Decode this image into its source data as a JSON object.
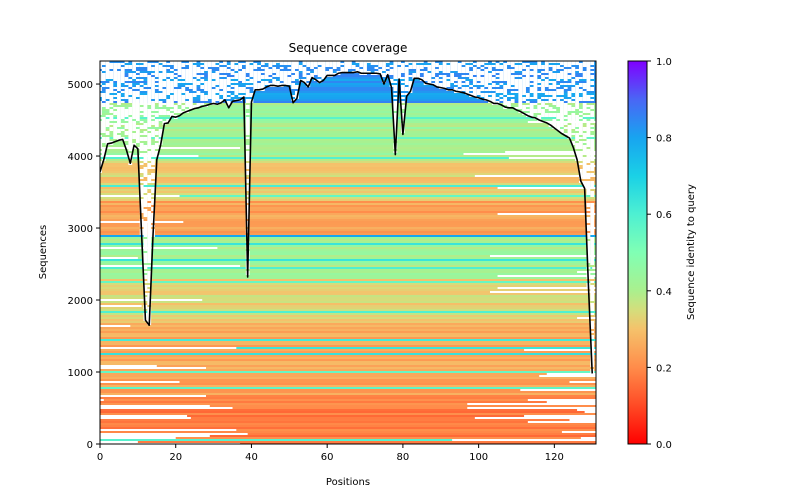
{
  "chart_data": {
    "type": "heatmap",
    "title": "Sequence coverage",
    "xlabel": "Positions",
    "ylabel": "Sequences",
    "xlim": [
      0,
      131
    ],
    "ylim": [
      0,
      5320
    ],
    "x_ticks": [
      0,
      20,
      40,
      60,
      80,
      100,
      120
    ],
    "y_ticks": [
      0,
      1000,
      2000,
      3000,
      4000,
      5000
    ],
    "grid": false,
    "colormap": "rainbow_r",
    "colorbar": {
      "label": "Sequence identity to query",
      "range": [
        0.0,
        1.0
      ],
      "ticks": [
        "0.0",
        "0.2",
        "0.4",
        "0.6",
        "0.8",
        "1.0"
      ],
      "placement": "right"
    },
    "identity_bands": [
      {
        "from_seq": 0,
        "to_seq": 700,
        "identity": 0.18
      },
      {
        "from_seq": 700,
        "to_seq": 1700,
        "identity": 0.25
      },
      {
        "from_seq": 1700,
        "to_seq": 2300,
        "identity": 0.33
      },
      {
        "from_seq": 2300,
        "to_seq": 2880,
        "identity": 0.42
      },
      {
        "from_seq": 2880,
        "to_seq": 2920,
        "identity": 0.78
      },
      {
        "from_seq": 2920,
        "to_seq": 3400,
        "identity": 0.24
      },
      {
        "from_seq": 3400,
        "to_seq": 3950,
        "identity": 0.32
      },
      {
        "from_seq": 3950,
        "to_seq": 4740,
        "identity": 0.42
      },
      {
        "from_seq": 4740,
        "to_seq": 5320,
        "identity": 0.82
      }
    ],
    "coverage_line": {
      "name": "coverage",
      "color": "#000000",
      "x": [
        0,
        1,
        2,
        3,
        4,
        5,
        6,
        7,
        8,
        9,
        10,
        11,
        12,
        13,
        14,
        15,
        16,
        17,
        18,
        19,
        20,
        21,
        22,
        23,
        24,
        25,
        26,
        27,
        28,
        29,
        30,
        31,
        32,
        33,
        34,
        35,
        36,
        37,
        38,
        39,
        40,
        41,
        42,
        43,
        44,
        45,
        46,
        47,
        48,
        49,
        50,
        51,
        52,
        53,
        54,
        55,
        56,
        57,
        58,
        59,
        60,
        61,
        62,
        63,
        64,
        65,
        66,
        67,
        68,
        69,
        70,
        71,
        72,
        73,
        74,
        75,
        76,
        77,
        78,
        79,
        80,
        81,
        82,
        83,
        84,
        85,
        86,
        87,
        88,
        89,
        90,
        91,
        92,
        93,
        94,
        95,
        96,
        97,
        98,
        99,
        100,
        101,
        102,
        103,
        104,
        105,
        106,
        107,
        108,
        109,
        110,
        111,
        112,
        113,
        114,
        115,
        116,
        117,
        118,
        119,
        120,
        121,
        122,
        123,
        124,
        125,
        126,
        127,
        128,
        129,
        130
      ],
      "y": [
        3780,
        3950,
        4170,
        4180,
        4200,
        4220,
        4230,
        4080,
        3900,
        4150,
        4100,
        2900,
        1720,
        1650,
        2900,
        3950,
        4150,
        4450,
        4460,
        4550,
        4540,
        4560,
        4600,
        4620,
        4640,
        4660,
        4670,
        4690,
        4700,
        4720,
        4730,
        4720,
        4740,
        4780,
        4670,
        4760,
        4770,
        4780,
        4820,
        2320,
        4750,
        4920,
        4920,
        4930,
        4960,
        4980,
        4980,
        4970,
        4980,
        4980,
        4970,
        4740,
        4800,
        5050,
        5020,
        4960,
        5090,
        5060,
        5020,
        5050,
        5120,
        5120,
        5120,
        5150,
        5160,
        5160,
        5160,
        5160,
        5170,
        5150,
        5150,
        5150,
        5150,
        5150,
        5140,
        5000,
        5130,
        4950,
        4020,
        5070,
        4300,
        4830,
        4900,
        5080,
        5080,
        5060,
        5010,
        5000,
        4990,
        4960,
        4950,
        4940,
        4920,
        4920,
        4900,
        4890,
        4880,
        4860,
        4840,
        4820,
        4810,
        4790,
        4780,
        4760,
        4730,
        4730,
        4710,
        4680,
        4670,
        4670,
        4640,
        4620,
        4590,
        4560,
        4540,
        4530,
        4500,
        4480,
        4460,
        4430,
        4390,
        4350,
        4310,
        4280,
        4250,
        4120,
        3950,
        3650,
        3550,
        2200,
        980
      ]
    }
  }
}
